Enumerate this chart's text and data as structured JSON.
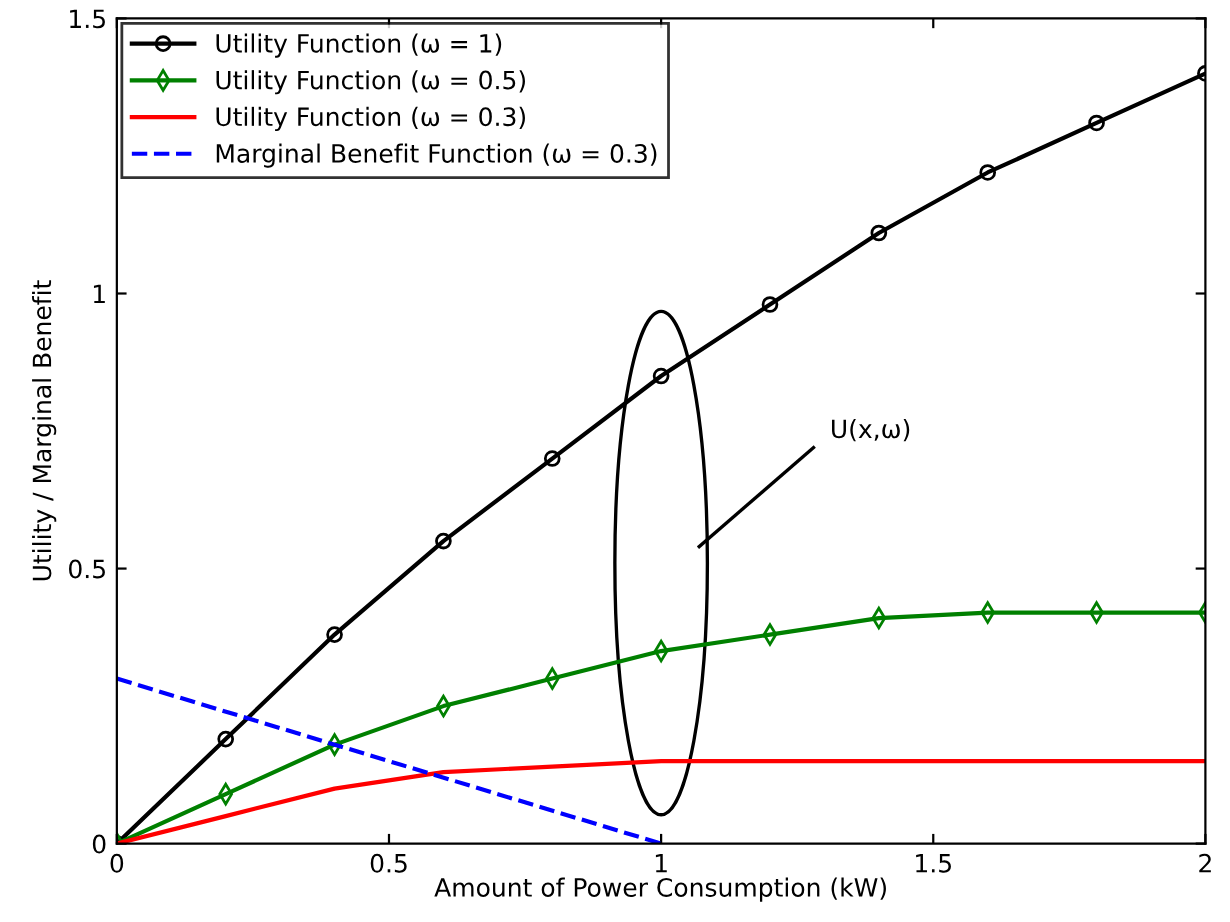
{
  "chart_data": {
    "type": "line",
    "xlabel": "Amount of Power Consumption (kW)",
    "ylabel": "Utility / Marginal Benefit",
    "x": [
      0,
      0.2,
      0.4,
      0.6,
      0.8,
      1.0,
      1.2,
      1.4,
      1.6,
      1.8,
      2.0
    ],
    "series": [
      {
        "name": "Utility Function (ω = 1)",
        "color": "#000000",
        "marker": "circle",
        "line_style": "solid",
        "values": [
          0,
          0.19,
          0.38,
          0.55,
          0.7,
          0.85,
          0.98,
          1.11,
          1.22,
          1.31,
          1.4
        ]
      },
      {
        "name": "Utility Function (ω = 0.5)",
        "color": "#008000",
        "marker": "diamond",
        "line_style": "solid",
        "values": [
          0,
          0.09,
          0.18,
          0.25,
          0.3,
          0.35,
          0.38,
          0.41,
          0.42,
          0.42,
          0.42
        ]
      },
      {
        "name": "Utility Function (ω = 0.3)",
        "color": "#ff0000",
        "marker": "none",
        "line_style": "solid",
        "values": [
          0,
          0.05,
          0.1,
          0.13,
          0.14,
          0.15,
          0.15,
          0.15,
          0.15,
          0.15,
          0.15
        ]
      },
      {
        "name": "Marginal Benefit Function (ω = 0.3)",
        "color": "#0000ff",
        "marker": "none",
        "line_style": "dashed",
        "x": [
          0,
          1.0
        ],
        "values": [
          0.3,
          0
        ]
      }
    ],
    "xlim": [
      0,
      2
    ],
    "ylim": [
      0,
      1.5
    ],
    "xticks": [
      0,
      0.5,
      1,
      1.5,
      2
    ],
    "yticks": [
      0,
      0.5,
      1,
      1.5
    ],
    "annotations": [
      "U(x,ω)"
    ],
    "legend": "top left",
    "grid": false
  }
}
